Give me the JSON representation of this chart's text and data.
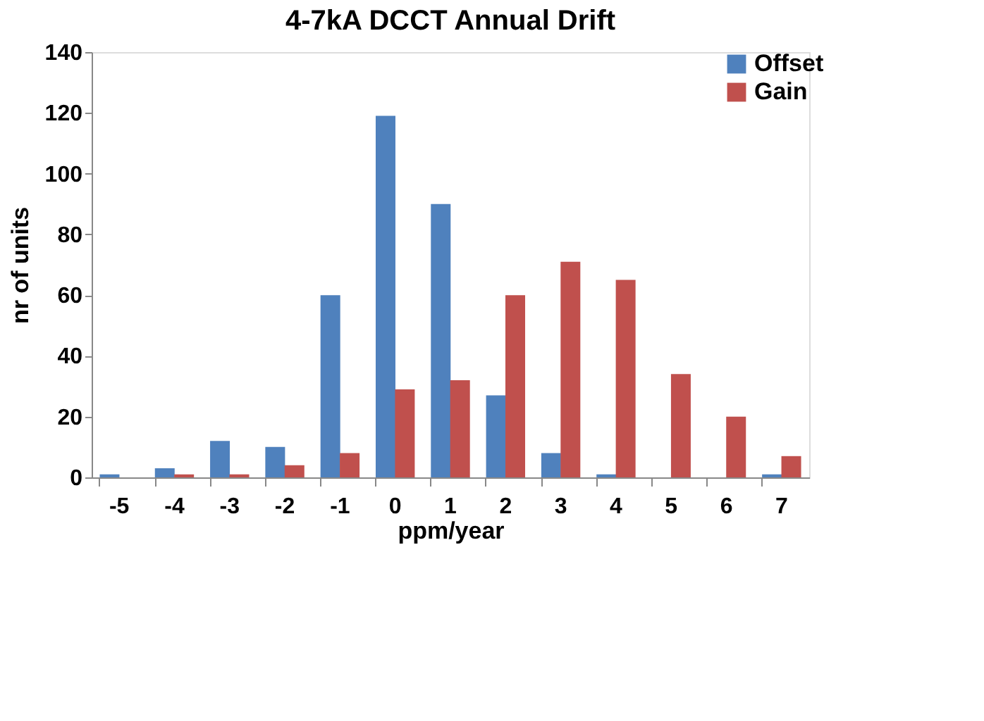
{
  "chart_data": {
    "type": "bar",
    "title": "4-7kA DCCT Annual Drift",
    "xlabel": "ppm/year",
    "ylabel": "nr of units",
    "categories": [
      "-5",
      "-4",
      "-3",
      "-2",
      "-1",
      "0",
      "1",
      "2",
      "3",
      "4",
      "5",
      "6",
      "7"
    ],
    "series": [
      {
        "name": "Offset",
        "color": "#4f81bd",
        "values": [
          1,
          3,
          12,
          10,
          60,
          119,
          90,
          27,
          8,
          1,
          0,
          0,
          1
        ]
      },
      {
        "name": "Gain",
        "color": "#c0504d",
        "values": [
          0,
          1,
          1,
          4,
          8,
          29,
          32,
          60,
          71,
          65,
          34,
          20,
          7
        ]
      }
    ],
    "ylim": [
      0,
      140
    ],
    "yticks": [
      0,
      20,
      40,
      60,
      80,
      100,
      120,
      140
    ],
    "grid": false,
    "legend": "right"
  }
}
